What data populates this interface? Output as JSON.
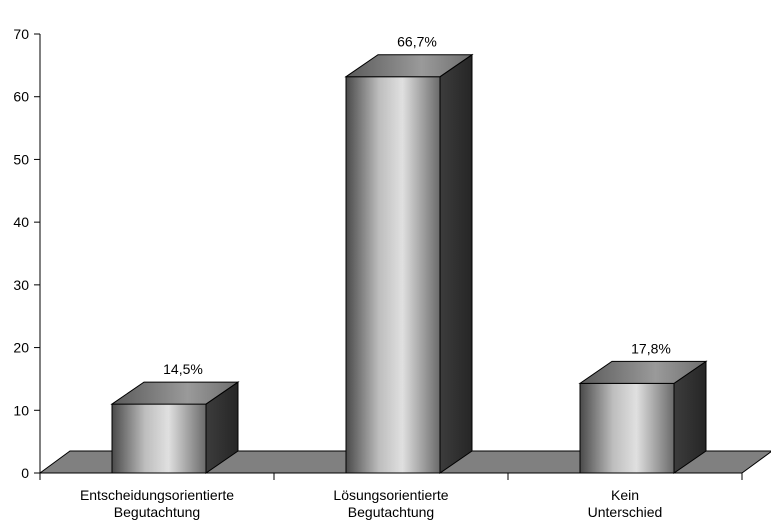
{
  "chart_data": {
    "type": "bar",
    "style": "3d-cylinder-like bars with metallic grey gradient",
    "categories": [
      [
        "Entscheidungsorientierte",
        "Begutachtung"
      ],
      [
        "Lösungsorientierte",
        "Begutachtung"
      ],
      [
        "Kein",
        "Unterschied"
      ]
    ],
    "values": [
      14.5,
      66.7,
      17.8
    ],
    "data_labels": [
      "14,5%",
      "66,7%",
      "17,8%"
    ],
    "yticks": [
      0,
      10,
      20,
      30,
      40,
      50,
      60,
      70
    ],
    "ylim": [
      0,
      70
    ],
    "title": "",
    "xlabel": "",
    "ylabel": "",
    "grid": false,
    "legend": "none",
    "colors": {
      "bar_light": "#d9d9d9",
      "bar_dark": "#3a3a3a",
      "top_light": "#8c8c8c",
      "top_dark": "#4a4a4a",
      "side": "#2e2e2e",
      "floor": "#808080"
    }
  }
}
